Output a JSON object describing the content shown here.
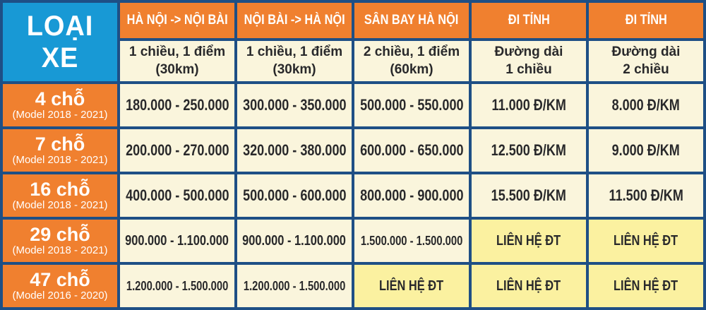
{
  "colors": {
    "blue": "#1899d5",
    "orange": "#f0802f",
    "cream": "#faf5dc",
    "yellow": "#fbf1a0",
    "border": "#1e4f85",
    "dark": "#29292b",
    "white": "#ffffff"
  },
  "chart_data": {
    "type": "table",
    "title": "LOẠI XE",
    "corner_label": "LOẠI XE",
    "columns": [
      {
        "title": "HÀ NỘI -> NỘI BÀI",
        "sub1": "1 chiều, 1 điểm",
        "sub2": "(30km)"
      },
      {
        "title": "NỘI BÀI -> HÀ NỘI",
        "sub1": "1 chiều, 1 điểm",
        "sub2": "(30km)"
      },
      {
        "title": "SÂN BAY HÀ NỘI",
        "sub1": "2 chiều, 1 điểm",
        "sub2": "(60km)"
      },
      {
        "title": "ĐI TỈNH",
        "sub1": "Đường dài",
        "sub2": "1 chiều"
      },
      {
        "title": "ĐI TỈNH",
        "sub1": "Đường dài",
        "sub2": "2 chiều"
      }
    ],
    "rows": [
      {
        "type": "4 chỗ",
        "model": "(Model 2018 - 2021)",
        "cells": [
          "180.000 - 250.000",
          "300.000 - 350.000",
          "500.000 - 550.000",
          "11.000 Đ/KM",
          "8.000 Đ/KM"
        ]
      },
      {
        "type": "7 chỗ",
        "model": "(Model 2018 - 2021)",
        "cells": [
          "200.000 - 270.000",
          "320.000 - 380.000",
          "600.000 - 650.000",
          "12.500 Đ/KM",
          "9.000 Đ/KM"
        ]
      },
      {
        "type": "16 chỗ",
        "model": "(Model 2018 - 2021)",
        "cells": [
          "400.000 - 500.000",
          "500.000 - 600.000",
          "800.000 - 900.000",
          "15.500 Đ/KM",
          "11.500 Đ/KM"
        ]
      },
      {
        "type": "29 chỗ",
        "model": "(Model 2018 - 2021)",
        "cells": [
          "900.000 - 1.100.000",
          "900.000 - 1.100.000",
          "1.500.000 - 1.500.000",
          "LIÊN HỆ ĐT",
          "LIÊN HỆ ĐT"
        ]
      },
      {
        "type": "47 chỗ",
        "model": "(Model 2016 - 2020)",
        "cells": [
          "1.200.000 - 1.500.000",
          "1.200.000 - 1.500.000",
          "LIÊN HỆ ĐT",
          "LIÊN HỆ ĐT",
          "LIÊN HỆ ĐT"
        ]
      }
    ]
  }
}
